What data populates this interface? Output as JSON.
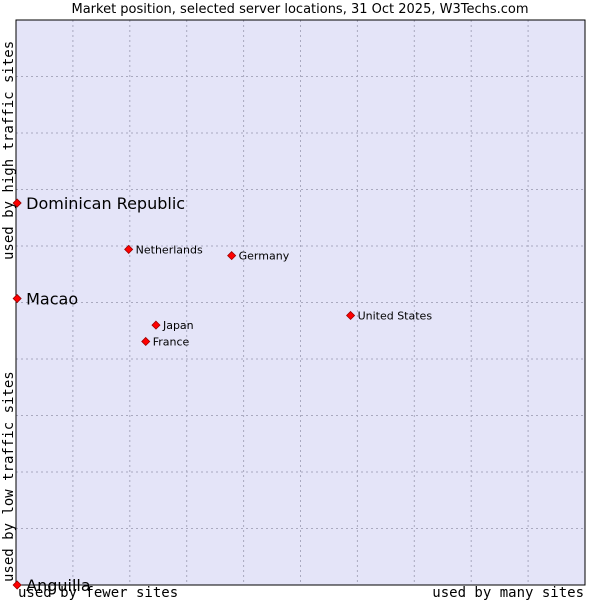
{
  "chart_data": {
    "type": "scatter",
    "title": "Market position, selected server locations, 31 Oct 2025, W3Techs.com",
    "xlabel_low": "used by fewer sites",
    "xlabel_high": "used by many sites",
    "ylabel_low": "used by low traffic sites",
    "ylabel_high": "used by high traffic sites",
    "xlim": [
      0,
      100
    ],
    "ylim": [
      0,
      100
    ],
    "grid": true,
    "colors": {
      "background": "#e4e4f8",
      "grid": "#a9a9bf",
      "marker": "#ff0000",
      "marker_stroke": "#9a0000"
    },
    "points": [
      {
        "label": "Dominican Republic",
        "x": 0.2,
        "y": 67.6,
        "emphasis": true
      },
      {
        "label": "Macao",
        "x": 0.2,
        "y": 50.7,
        "emphasis": true
      },
      {
        "label": "Anguilla",
        "x": 0.2,
        "y": 0,
        "emphasis": true
      },
      {
        "label": "Netherlands",
        "x": 19.8,
        "y": 59.4,
        "emphasis": false
      },
      {
        "label": "Germany",
        "x": 37.9,
        "y": 58.3,
        "emphasis": false
      },
      {
        "label": "United States",
        "x": 58.8,
        "y": 47.7,
        "emphasis": false
      },
      {
        "label": "Japan",
        "x": 24.6,
        "y": 46.0,
        "emphasis": false
      },
      {
        "label": "France",
        "x": 22.8,
        "y": 43.1,
        "emphasis": false
      }
    ]
  }
}
